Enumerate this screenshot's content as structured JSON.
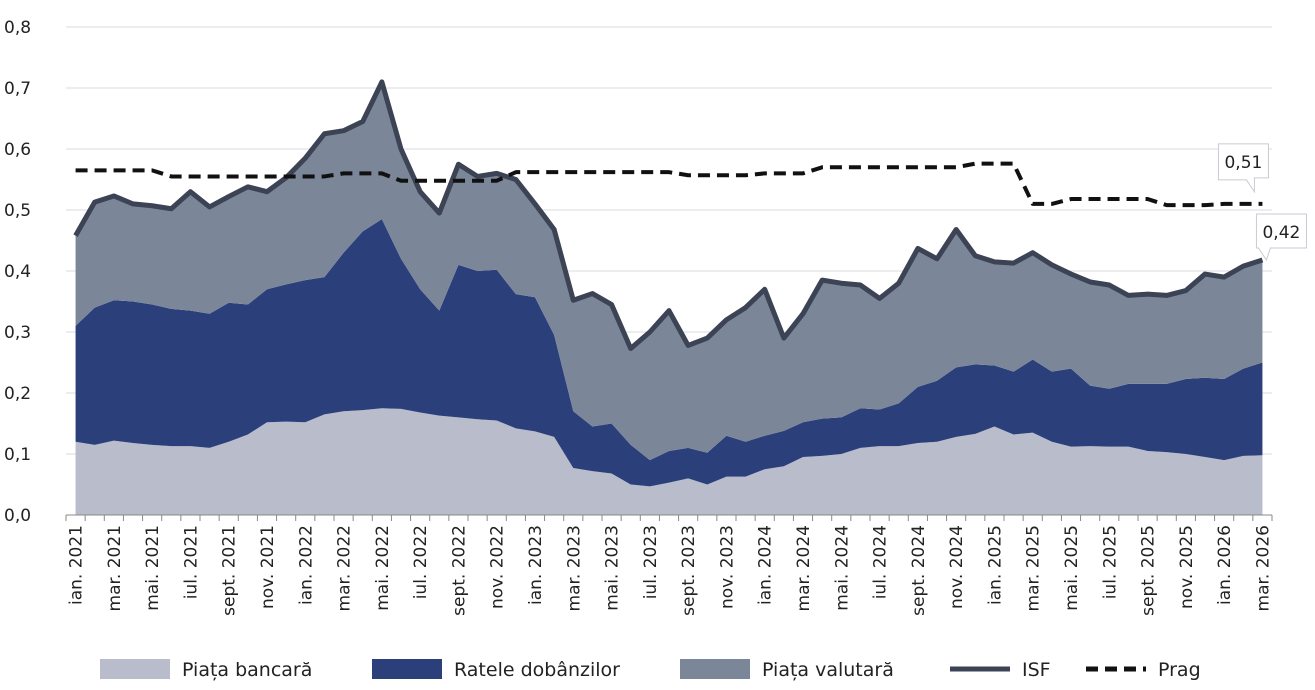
{
  "chart_data": {
    "type": "stacked-area-line",
    "categories": [
      "ian. 2021",
      null,
      "mar. 2021",
      null,
      "mai. 2021",
      null,
      "iul. 2021",
      null,
      "sept. 2021",
      null,
      "nov. 2021",
      null,
      "ian. 2022",
      null,
      "mar. 2022",
      null,
      "mai. 2022",
      null,
      "iul. 2022",
      null,
      "sept. 2022",
      null,
      "nov. 2022",
      null,
      "ian. 2023",
      null,
      "mar. 2023",
      null,
      "mai. 2023",
      null,
      "iul. 2023",
      null,
      "sept. 2023",
      null,
      "nov. 2023",
      null,
      "ian. 2024",
      null,
      "mar. 2024",
      null,
      "mai. 2024",
      null,
      "iul. 2024",
      null,
      "sept. 2024",
      null,
      "nov. 2024",
      null,
      "ian. 2025",
      null,
      "mar. 2025",
      null,
      "mai. 2025",
      null,
      "iul. 2025",
      null,
      "sept. 2025",
      null,
      "nov. 2025",
      null,
      "ian. 2026",
      null,
      "mar. 2026"
    ],
    "series": [
      {
        "name": "Piața bancară",
        "kind": "area",
        "color": "#b8bccb",
        "values": [
          0.12,
          0.115,
          0.122,
          0.118,
          0.115,
          0.113,
          0.113,
          0.11,
          0.12,
          0.132,
          0.152,
          0.153,
          0.152,
          0.165,
          0.17,
          0.172,
          0.175,
          0.174,
          0.168,
          0.163,
          0.16,
          0.157,
          0.155,
          0.142,
          0.137,
          0.128,
          0.077,
          0.072,
          0.068,
          0.05,
          0.047,
          0.053,
          0.06,
          0.05,
          0.063,
          0.063,
          0.075,
          0.08,
          0.095,
          0.097,
          0.1,
          0.11,
          0.113,
          0.113,
          0.118,
          0.12,
          0.128,
          0.133,
          0.145,
          0.132,
          0.135,
          0.12,
          0.112,
          0.113,
          0.112,
          0.112,
          0.105,
          0.103,
          0.1,
          0.095,
          0.09,
          0.097,
          0.098
        ]
      },
      {
        "name": "Ratele dobânzilor",
        "kind": "area",
        "color": "#2b3f7a",
        "values": [
          0.19,
          0.225,
          0.23,
          0.232,
          0.23,
          0.225,
          0.222,
          0.22,
          0.228,
          0.213,
          0.218,
          0.225,
          0.233,
          0.225,
          0.26,
          0.293,
          0.31,
          0.246,
          0.202,
          0.172,
          0.25,
          0.243,
          0.247,
          0.22,
          0.22,
          0.167,
          0.093,
          0.073,
          0.082,
          0.065,
          0.043,
          0.052,
          0.05,
          0.052,
          0.067,
          0.057,
          0.055,
          0.058,
          0.057,
          0.061,
          0.06,
          0.065,
          0.06,
          0.07,
          0.092,
          0.1,
          0.114,
          0.114,
          0.1,
          0.103,
          0.12,
          0.115,
          0.128,
          0.099,
          0.095,
          0.103,
          0.11,
          0.112,
          0.123,
          0.13,
          0.133,
          0.143,
          0.152
        ]
      },
      {
        "name": "Piața valutară",
        "kind": "area",
        "color": "#7b8799",
        "values": [
          0.148,
          0.173,
          0.171,
          0.16,
          0.162,
          0.164,
          0.195,
          0.175,
          0.174,
          0.193,
          0.16,
          0.175,
          0.2,
          0.235,
          0.2,
          0.18,
          0.225,
          0.18,
          0.16,
          0.16,
          0.165,
          0.155,
          0.158,
          0.188,
          0.153,
          0.173,
          0.182,
          0.218,
          0.195,
          0.158,
          0.21,
          0.23,
          0.168,
          0.188,
          0.19,
          0.22,
          0.24,
          0.152,
          0.178,
          0.227,
          0.22,
          0.202,
          0.182,
          0.197,
          0.227,
          0.2,
          0.226,
          0.178,
          0.17,
          0.178,
          0.175,
          0.175,
          0.155,
          0.17,
          0.17,
          0.145,
          0.147,
          0.145,
          0.145,
          0.17,
          0.167,
          0.168,
          0.168
        ]
      },
      {
        "name": "ISF",
        "kind": "line",
        "color": "#3b4354",
        "values": [
          0.458,
          0.513,
          0.523,
          0.51,
          0.507,
          0.502,
          0.53,
          0.505,
          0.522,
          0.538,
          0.53,
          0.553,
          0.585,
          0.625,
          0.63,
          0.645,
          0.71,
          0.6,
          0.53,
          0.495,
          0.575,
          0.555,
          0.56,
          0.55,
          0.51,
          0.468,
          0.352,
          0.363,
          0.345,
          0.273,
          0.3,
          0.335,
          0.278,
          0.29,
          0.32,
          0.34,
          0.37,
          0.29,
          0.33,
          0.385,
          0.38,
          0.377,
          0.355,
          0.38,
          0.437,
          0.42,
          0.468,
          0.425,
          0.415,
          0.413,
          0.43,
          0.41,
          0.395,
          0.382,
          0.377,
          0.36,
          0.362,
          0.36,
          0.368,
          0.395,
          0.39,
          0.408,
          0.418
        ],
        "value_labels": [
          null,
          null,
          null,
          null,
          null,
          null,
          null,
          null,
          null,
          null,
          null,
          null,
          null,
          null,
          null,
          null,
          null,
          null,
          null,
          null,
          null,
          null,
          null,
          null,
          null,
          null,
          null,
          null,
          null,
          null,
          null,
          null,
          null,
          null,
          null,
          null,
          null,
          null,
          null,
          null,
          null,
          null,
          null,
          null,
          null,
          null,
          null,
          null,
          null,
          null,
          null,
          null,
          null,
          null,
          null,
          null,
          null,
          null,
          null,
          null,
          null,
          null,
          "0,42"
        ]
      },
      {
        "name": "Prag",
        "kind": "line",
        "dashed": true,
        "color": "#111111",
        "values": [
          0.565,
          0.565,
          0.565,
          0.565,
          0.565,
          0.555,
          0.555,
          0.555,
          0.555,
          0.555,
          0.555,
          0.555,
          0.555,
          0.555,
          0.56,
          0.56,
          0.56,
          0.548,
          0.548,
          0.548,
          0.548,
          0.548,
          0.548,
          0.562,
          0.562,
          0.562,
          0.562,
          0.562,
          0.562,
          0.562,
          0.562,
          0.562,
          0.557,
          0.557,
          0.557,
          0.557,
          0.56,
          0.56,
          0.56,
          0.57,
          0.57,
          0.57,
          0.57,
          0.57,
          0.57,
          0.57,
          0.57,
          0.576,
          0.576,
          0.576,
          0.51,
          0.51,
          0.518,
          0.518,
          0.518,
          0.518,
          0.518,
          0.508,
          0.508,
          0.508,
          0.51,
          0.51,
          0.51
        ],
        "value_labels": [
          null,
          null,
          null,
          null,
          null,
          null,
          null,
          null,
          null,
          null,
          null,
          null,
          null,
          null,
          null,
          null,
          null,
          null,
          null,
          null,
          null,
          null,
          null,
          null,
          null,
          null,
          null,
          null,
          null,
          null,
          null,
          null,
          null,
          null,
          null,
          null,
          null,
          null,
          null,
          null,
          null,
          null,
          null,
          null,
          null,
          null,
          null,
          null,
          null,
          null,
          null,
          null,
          null,
          null,
          null,
          null,
          null,
          null,
          null,
          null,
          null,
          null,
          "0,51"
        ]
      }
    ],
    "ylim": [
      0,
      0.8
    ],
    "yticks": [
      {
        "value": 0,
        "label": "0,0"
      },
      {
        "value": 0.1,
        "label": "0,1"
      },
      {
        "value": 0.2,
        "label": "0,2"
      },
      {
        "value": 0.3,
        "label": "0,3"
      },
      {
        "value": 0.4,
        "label": "0,4"
      },
      {
        "value": 0.5,
        "label": "0,5"
      },
      {
        "value": 0.6,
        "label": "0,6"
      },
      {
        "value": 0.7,
        "label": "0,7"
      },
      {
        "value": 0.8,
        "label": "0,8"
      }
    ],
    "grid": true,
    "legend": "bottom"
  }
}
